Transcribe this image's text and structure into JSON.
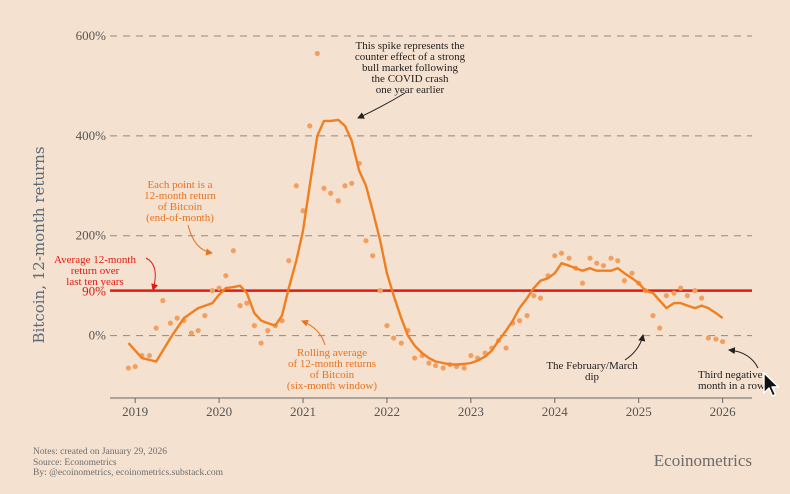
{
  "colors": {
    "background": "#f5e1cf",
    "series": "#f07f22",
    "points": "#f2a062",
    "reference": "#e01b12",
    "annotation_orange": "#e8721d",
    "text_dark": "#222222",
    "axis_text": "#555555"
  },
  "chart_data": {
    "type": "scatter",
    "title": "",
    "ylabel": "Bitcoin, 12-month returns",
    "xlabel": "",
    "ylim": [
      -125,
      620
    ],
    "xlim": [
      2018.7,
      2026.35
    ],
    "x_ticks": [
      2019,
      2020,
      2021,
      2022,
      2023,
      2024,
      2025,
      2026
    ],
    "x_tick_labels": [
      "2019",
      "2020",
      "2021",
      "2022",
      "2023",
      "2024",
      "2025",
      "2026"
    ],
    "y_ticks": [
      0,
      200,
      400,
      600
    ],
    "y_tick_labels": [
      "0%",
      "200%",
      "400%",
      "600%"
    ],
    "reference_line": {
      "value": 90,
      "label": "90%"
    },
    "series": [
      {
        "name": "12-month return of Bitcoin (end-of-month)",
        "kind": "points",
        "x": [
          2018.92,
          2019.0,
          2019.08,
          2019.17,
          2019.25,
          2019.33,
          2019.42,
          2019.5,
          2019.58,
          2019.67,
          2019.75,
          2019.83,
          2019.92,
          2020.0,
          2020.08,
          2020.17,
          2020.25,
          2020.33,
          2020.42,
          2020.5,
          2020.58,
          2020.67,
          2020.75,
          2020.83,
          2020.92,
          2021.0,
          2021.08,
          2021.17,
          2021.25,
          2021.33,
          2021.42,
          2021.5,
          2021.58,
          2021.67,
          2021.75,
          2021.83,
          2021.92,
          2022.0,
          2022.08,
          2022.17,
          2022.25,
          2022.33,
          2022.42,
          2022.5,
          2022.58,
          2022.67,
          2022.75,
          2022.83,
          2022.92,
          2023.0,
          2023.08,
          2023.17,
          2023.25,
          2023.33,
          2023.42,
          2023.5,
          2023.58,
          2023.67,
          2023.75,
          2023.83,
          2023.92,
          2024.0,
          2024.08,
          2024.17,
          2024.25,
          2024.33,
          2024.42,
          2024.5,
          2024.58,
          2024.67,
          2024.75,
          2024.83,
          2024.92,
          2025.0,
          2025.08,
          2025.17,
          2025.25,
          2025.33,
          2025.42,
          2025.5,
          2025.58,
          2025.67,
          2025.75,
          2025.83,
          2025.92,
          2026.0
        ],
        "y": [
          -65,
          -62,
          -40,
          -40,
          15,
          70,
          25,
          35,
          30,
          5,
          10,
          40,
          90,
          95,
          120,
          170,
          60,
          65,
          20,
          -15,
          10,
          20,
          30,
          150,
          300,
          250,
          420,
          565,
          295,
          285,
          270,
          300,
          305,
          345,
          190,
          160,
          90,
          20,
          -5,
          -15,
          10,
          -45,
          -40,
          -55,
          -60,
          -65,
          -58,
          -62,
          -65,
          -40,
          -45,
          -35,
          -25,
          -10,
          -25,
          25,
          30,
          40,
          80,
          75,
          120,
          160,
          165,
          155,
          135,
          105,
          155,
          145,
          140,
          155,
          150,
          110,
          125,
          105,
          90,
          40,
          15,
          80,
          85,
          95,
          80,
          90,
          75,
          -5,
          -7,
          -12
        ],
        "labels": [],
        "colors": []
      },
      {
        "name": "Rolling average of 12-month returns (six-month window)",
        "kind": "line",
        "x": [
          2018.92,
          2019.08,
          2019.25,
          2019.42,
          2019.58,
          2019.75,
          2019.92,
          2020.0,
          2020.08,
          2020.17,
          2020.25,
          2020.33,
          2020.42,
          2020.5,
          2020.58,
          2020.67,
          2020.75,
          2020.83,
          2020.92,
          2021.0,
          2021.08,
          2021.17,
          2021.25,
          2021.33,
          2021.42,
          2021.5,
          2021.58,
          2021.67,
          2021.75,
          2021.83,
          2021.92,
          2022.0,
          2022.08,
          2022.17,
          2022.25,
          2022.33,
          2022.42,
          2022.5,
          2022.58,
          2022.67,
          2022.75,
          2022.83,
          2022.92,
          2023.0,
          2023.08,
          2023.17,
          2023.25,
          2023.33,
          2023.42,
          2023.5,
          2023.58,
          2023.67,
          2023.75,
          2023.83,
          2023.92,
          2024.0,
          2024.08,
          2024.17,
          2024.25,
          2024.33,
          2024.42,
          2024.5,
          2024.58,
          2024.67,
          2024.75,
          2024.83,
          2024.92,
          2025.0,
          2025.08,
          2025.17,
          2025.25,
          2025.33,
          2025.42,
          2025.5,
          2025.58,
          2025.67,
          2025.75,
          2025.83,
          2025.92,
          2026.0
        ],
        "y": [
          -15,
          -45,
          -52,
          -5,
          35,
          55,
          65,
          82,
          95,
          97,
          100,
          85,
          45,
          30,
          25,
          20,
          40,
          95,
          150,
          210,
          300,
          400,
          430,
          430,
          432,
          420,
          390,
          330,
          300,
          250,
          190,
          125,
          80,
          35,
          0,
          -20,
          -35,
          -45,
          -52,
          -55,
          -58,
          -58,
          -57,
          -55,
          -50,
          -42,
          -30,
          -10,
          10,
          30,
          55,
          75,
          95,
          110,
          115,
          125,
          145,
          140,
          135,
          130,
          135,
          130,
          130,
          130,
          135,
          125,
          115,
          105,
          90,
          85,
          70,
          55,
          65,
          65,
          60,
          55,
          60,
          55,
          45,
          35
        ]
      }
    ],
    "annotations": [
      "This spike represents the counter effect of a strong bull market following the COVID crash one year earlier",
      "Each point is a 12-month return of Bitcoin (end-of-month)",
      "Average 12-month return over last ten years",
      "Rolling average of 12-month returns of Bitcoin (six-month window)",
      "The February/March dip",
      "Third negative month in a row"
    ]
  },
  "text": {
    "ann_spike": [
      "This spike represents the",
      "counter effect of a strong",
      "bull market following",
      "the COVID crash",
      "one year earlier"
    ],
    "ann_point": [
      "Each point is a",
      "12-month return",
      "of Bitcoin",
      "(end-of-month)"
    ],
    "ann_average": [
      "Average 12-month",
      "return over",
      "last ten years"
    ],
    "ann_rolling": [
      "Rolling average",
      "of 12-month returns",
      "of Bitcoin",
      "(six-month window)"
    ],
    "ann_dip": [
      "The February/March",
      "dip"
    ],
    "ann_negative": [
      "Third negative",
      "month in a row"
    ]
  },
  "footer": {
    "notes": "Notes: created on January 29, 2026",
    "source": "Source: Econometrics",
    "by": "By: @ecoinometrics, ecoinometrics.substack.com",
    "brand": "Ecoinometrics"
  }
}
